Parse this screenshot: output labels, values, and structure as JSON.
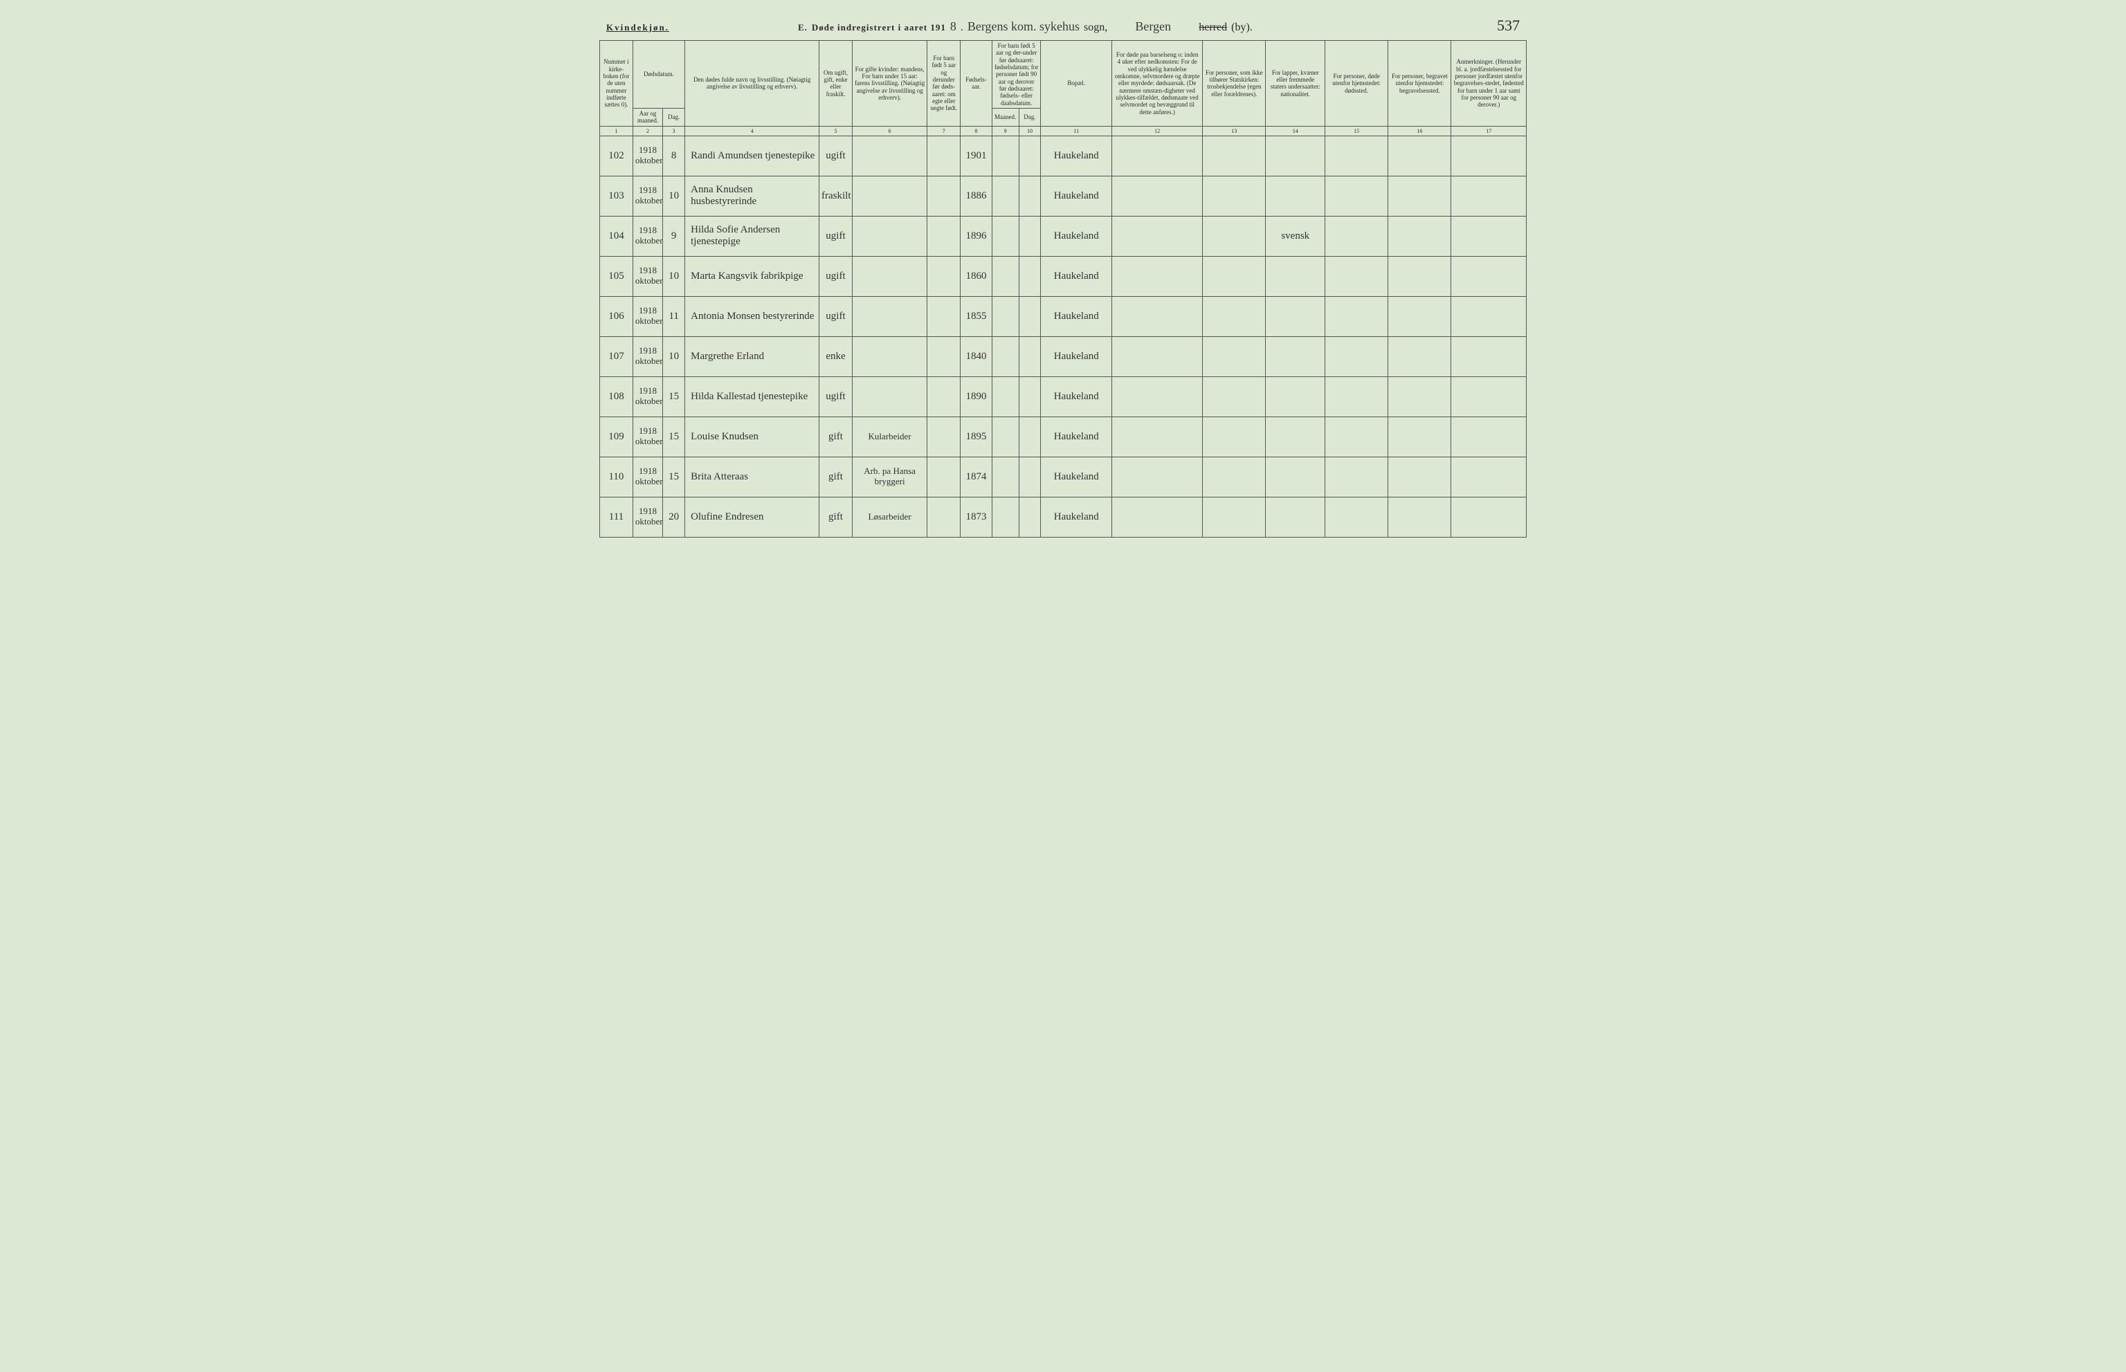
{
  "header": {
    "gender_label": "Kvindekjøn.",
    "title_prefix": "E.",
    "title_main": "Døde indregistrert i aaret 191",
    "year_suffix": "8",
    "sogn_value": "Bergens kom. sykehus",
    "sogn_label": "sogn,",
    "herred_value": "Bergen",
    "herred_label_strike": "herred",
    "herred_label_by": "(by).",
    "page_number": "537"
  },
  "columns": {
    "c1": "Nummer i kirke-boken (for de uten nummer indførte sættes 0).",
    "c2a": "Dødsdatum.",
    "c2b": "Aar og maaned.",
    "c2c": "Dag.",
    "c4": "Den dødes fulde navn og livsstilling. (Nøiagtig angivelse av livsstilling og erhverv).",
    "c5": "Om ugift, gift, enke eller fraskilt.",
    "c6": "For gifte kvinder: mandens, For barn under 15 aar: farens livsstilling. (Nøiagtig angivelse av livsstilling og erhverv).",
    "c7": "For barn født 5 aar og derunder før døds-aaret: om egte eller uegte født.",
    "c8": "Fødsels-aar.",
    "c9": "For barn født 5 aar og der-under før dødsaaret: fødselsdatum; for personer født 90 aar og derover før dødsaaret: fødsels- eller daabsdatum.",
    "c9a": "Maaned.",
    "c9b": "Dag.",
    "c11": "Bopæl.",
    "c12": "For døde paa barselseng o: inden 4 uker efter nedkomsten: For de ved ulykkelig hændelse omkomne, selvmordere og dræpte eller myrdede: dødsaarsak. (De nærmere omstæn-digheter ved ulykkes-tilfældet, dødsmaate ved selvmordet og bevæggrund til dette anføres.)",
    "c13": "For personer, som ikke tilhører Statskirken: trosbekjendelse (egen eller forældrenes).",
    "c14": "For lapper, kvæner eller fremmede staters undersaatter: nationalitet.",
    "c15": "For personer, døde utenfor hjemstedet: dødssted.",
    "c16": "For personer, begravet utenfor hjemstedet: begravelsessted.",
    "c17": "Anmerkninger. (Herunder bl. a. jordfæstelsessted for personer jordfæstet utenfor begravelses-stedet, fødested for barn under 1 aar samt for personer 90 aar og derover.)"
  },
  "colnums": [
    "1",
    "2",
    "3",
    "4",
    "5",
    "6",
    "7",
    "8",
    "9",
    "10",
    "11",
    "12",
    "13",
    "14",
    "15",
    "16",
    "17"
  ],
  "rows": [
    {
      "num": "102",
      "ym": "1918 oktober",
      "day": "8",
      "name": "Randi Amundsen tjenestepike",
      "status": "ugift",
      "occ": "",
      "born": "1901",
      "place": "Haukeland",
      "nat": ""
    },
    {
      "num": "103",
      "ym": "1918 oktober",
      "day": "10",
      "name": "Anna Knudsen husbestyrerinde",
      "status": "fraskilt",
      "occ": "",
      "born": "1886",
      "place": "Haukeland",
      "nat": ""
    },
    {
      "num": "104",
      "ym": "1918 oktober",
      "day": "9",
      "name": "Hilda Sofie Andersen tjenestepige",
      "status": "ugift",
      "occ": "",
      "born": "1896",
      "place": "Haukeland",
      "nat": "svensk"
    },
    {
      "num": "105",
      "ym": "1918 oktober",
      "day": "10",
      "name": "Marta Kangsvik fabrikpige",
      "status": "ugift",
      "occ": "",
      "born": "1860",
      "place": "Haukeland",
      "nat": ""
    },
    {
      "num": "106",
      "ym": "1918 oktober",
      "day": "11",
      "name": "Antonia Monsen bestyrerinde",
      "status": "ugift",
      "occ": "",
      "born": "1855",
      "place": "Haukeland",
      "nat": ""
    },
    {
      "num": "107",
      "ym": "1918 oktober",
      "day": "10",
      "name": "Margrethe Erland",
      "status": "enke",
      "occ": "",
      "born": "1840",
      "place": "Haukeland",
      "nat": ""
    },
    {
      "num": "108",
      "ym": "1918 oktober",
      "day": "15",
      "name": "Hilda Kallestad tjenestepike",
      "status": "ugift",
      "occ": "",
      "born": "1890",
      "place": "Haukeland",
      "nat": ""
    },
    {
      "num": "109",
      "ym": "1918 oktober",
      "day": "15",
      "name": "Louise Knudsen",
      "status": "gift",
      "occ": "Kularbeider",
      "born": "1895",
      "place": "Haukeland",
      "nat": ""
    },
    {
      "num": "110",
      "ym": "1918 oktober",
      "day": "15",
      "name": "Brita Atteraas",
      "status": "gift",
      "occ": "Arb. pa Hansa bryggeri",
      "born": "1874",
      "place": "Haukeland",
      "nat": ""
    },
    {
      "num": "111",
      "ym": "1918 oktober",
      "day": "20",
      "name": "Olufine Endresen",
      "status": "gift",
      "occ": "Løsarbeider",
      "born": "1873",
      "place": "Haukeland",
      "nat": ""
    }
  ]
}
